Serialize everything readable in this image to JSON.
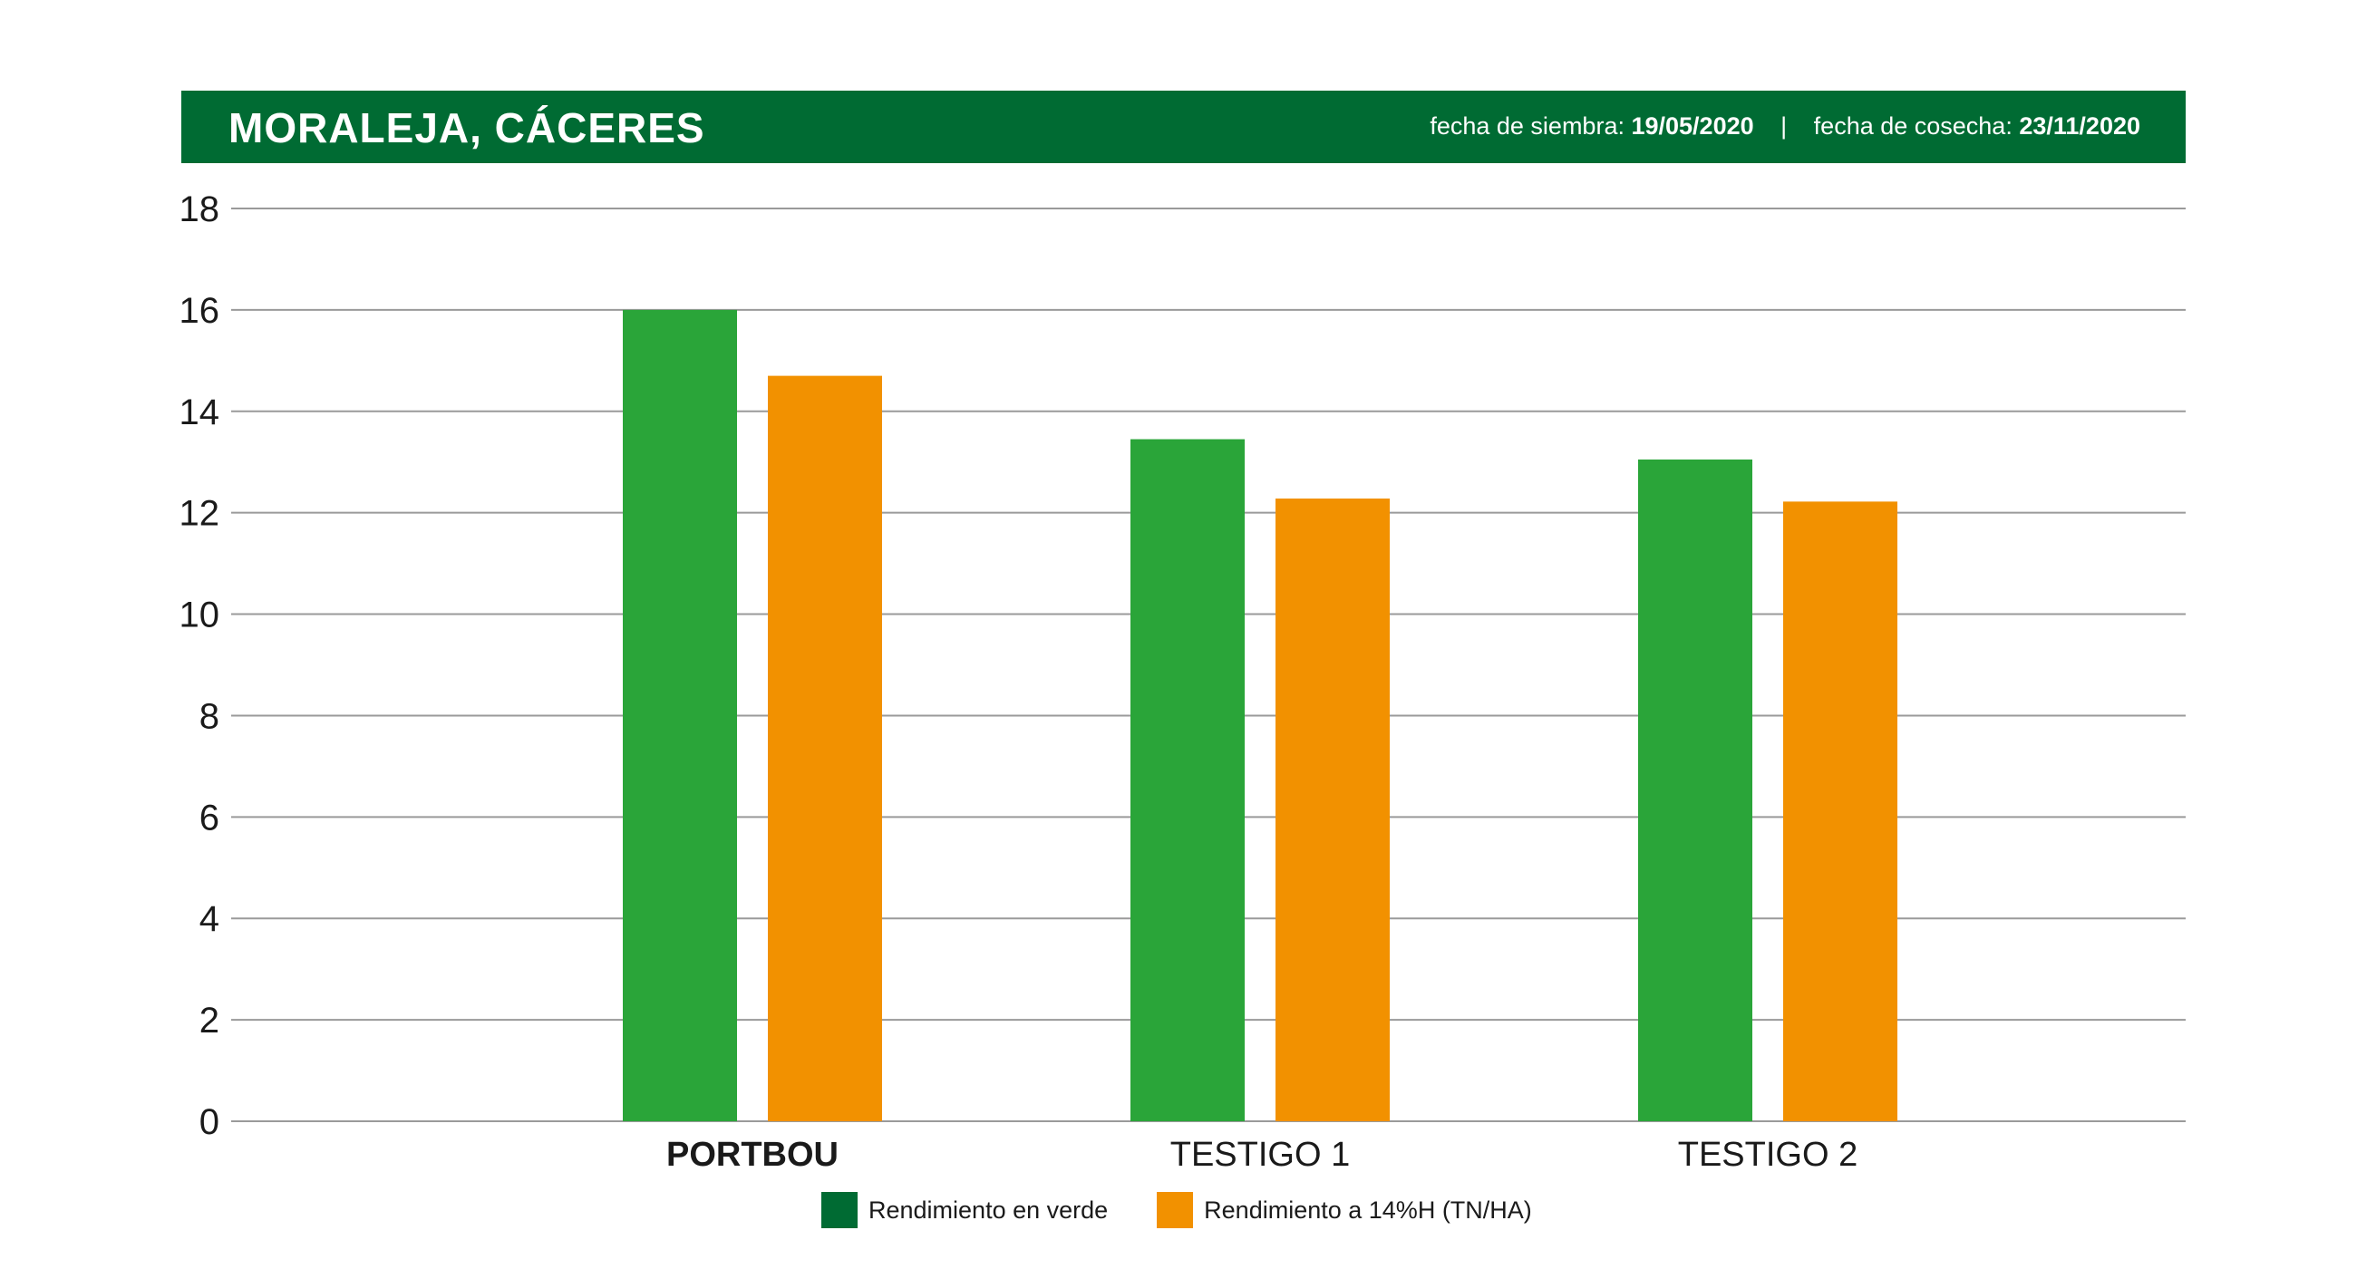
{
  "header": {
    "title": "MORALEJA, CÁCERES",
    "siembra_label": "fecha de siembra:",
    "siembra_date": "19/05/2020",
    "separator": "|",
    "cosecha_label": "fecha de cosecha:",
    "cosecha_date": "23/11/2020",
    "background_color": "#006b33"
  },
  "chart_data": {
    "type": "bar",
    "categories": [
      "PORTBOU",
      "TESTIGO 1",
      "TESTIGO 2"
    ],
    "bold_categories": [
      "PORTBOU"
    ],
    "series": [
      {
        "name": "Rendimiento en verde",
        "values": [
          16.0,
          13.45,
          13.05
        ],
        "bar_color": "#2aa539",
        "legend_color": "#006b33"
      },
      {
        "name": "Rendimiento a 14%H (TN/HA)",
        "values": [
          14.7,
          12.28,
          12.22
        ],
        "bar_color": "#f29100",
        "legend_color": "#f29100"
      }
    ],
    "yticks": [
      0,
      2,
      4,
      6,
      8,
      10,
      12,
      14,
      16,
      18
    ],
    "ylim": [
      0,
      18
    ],
    "grid": true,
    "legend_position": "bottom-center",
    "title": "",
    "xlabel": "",
    "ylabel": ""
  }
}
